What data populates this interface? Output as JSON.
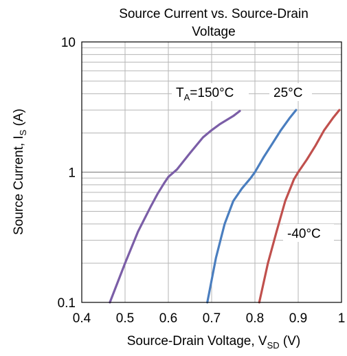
{
  "chart_data": {
    "type": "line",
    "title_line1": "Source Current vs. Source-Drain",
    "title_line2": "Voltage",
    "xlabel_main": "Source-Drain Voltage, V",
    "xlabel_sub": "SD",
    "xlabel_unit": " (V)",
    "ylabel_main": "Source Current, I",
    "ylabel_sub": "S",
    "ylabel_unit": " (A)",
    "xlim": [
      0.4,
      1.0
    ],
    "ylim": [
      0.1,
      10
    ],
    "y_scale": "log",
    "grid": true,
    "x_ticks": [
      "0.4",
      "0.5",
      "0.6",
      "0.7",
      "0.8",
      "0.9",
      "1"
    ],
    "y_ticks": [
      "0.1",
      "1",
      "10"
    ],
    "series": [
      {
        "name_main": "T",
        "name_sub": "A",
        "name_rest": "=150°C",
        "color": "#7b5ea7",
        "x": [
          0.465,
          0.5,
          0.53,
          0.56,
          0.575,
          0.59,
          0.6,
          0.62,
          0.65,
          0.68,
          0.7,
          0.72,
          0.75,
          0.765
        ],
        "y": [
          0.1,
          0.2,
          0.35,
          0.55,
          0.68,
          0.82,
          0.92,
          1.05,
          1.4,
          1.85,
          2.1,
          2.35,
          2.7,
          2.95
        ]
      },
      {
        "name_main": "25°C",
        "name_sub": "",
        "name_rest": "",
        "color": "#4a7ebf",
        "x": [
          0.69,
          0.71,
          0.73,
          0.75,
          0.77,
          0.79,
          0.8,
          0.82,
          0.84,
          0.86,
          0.88,
          0.895
        ],
        "y": [
          0.1,
          0.22,
          0.4,
          0.6,
          0.75,
          0.9,
          1.0,
          1.3,
          1.65,
          2.1,
          2.6,
          3.0
        ]
      },
      {
        "name_main": "-40°C",
        "name_sub": "",
        "name_rest": "",
        "color": "#c0504d",
        "x": [
          0.81,
          0.83,
          0.85,
          0.87,
          0.885,
          0.89,
          0.9,
          0.92,
          0.94,
          0.96,
          0.98,
          0.995
        ],
        "y": [
          0.1,
          0.2,
          0.35,
          0.6,
          0.8,
          0.88,
          1.0,
          1.25,
          1.6,
          2.1,
          2.6,
          3.0
        ]
      }
    ]
  }
}
